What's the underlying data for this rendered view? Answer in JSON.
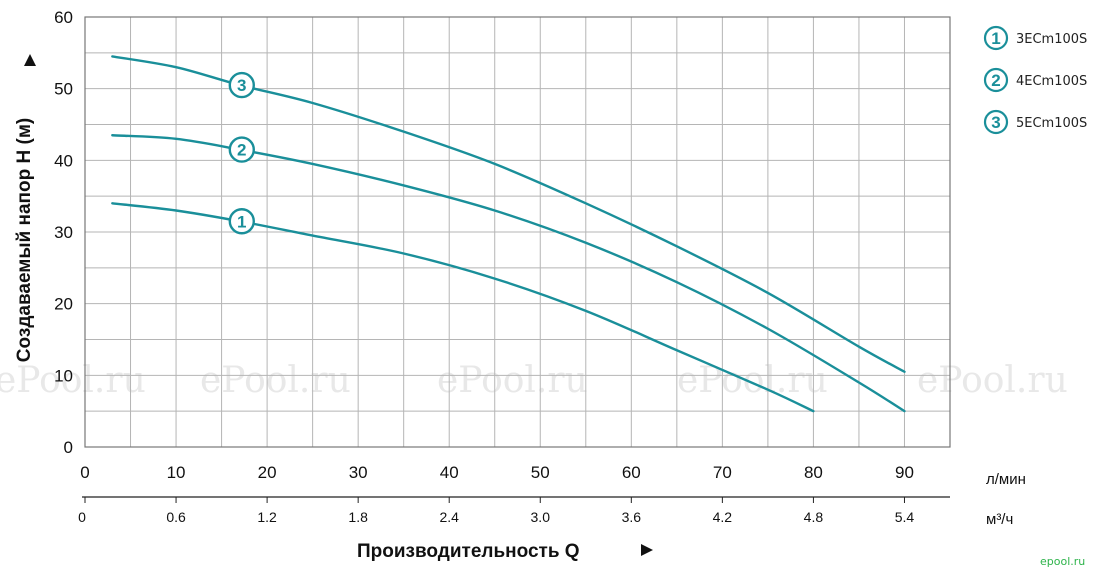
{
  "chart_data": {
    "type": "line",
    "xlabel": "Производительность Q",
    "ylabel": "Создаваемый напор H (м)",
    "xlim": [
      0,
      95
    ],
    "ylim": [
      0,
      60
    ],
    "x_ticks": [
      0,
      10,
      20,
      30,
      40,
      50,
      60,
      70,
      80,
      90
    ],
    "x_ticks_secondary": [
      "0",
      "0.6",
      "1.2",
      "1.8",
      "2.4",
      "3.0",
      "3.6",
      "4.2",
      "4.8",
      "5.4"
    ],
    "y_ticks": [
      0,
      10,
      20,
      30,
      40,
      50,
      60
    ],
    "x_unit": "л/мин",
    "x_unit_secondary": "м³/ч",
    "grid": true,
    "legend_position": "right",
    "series": [
      {
        "name": "3ECm100S",
        "marker": "1",
        "color": "#1a8f9a",
        "x": [
          3,
          10,
          17,
          25,
          35,
          45,
          55,
          65,
          75,
          80
        ],
        "y": [
          34,
          33,
          31.5,
          29.5,
          27,
          23.5,
          19,
          13.5,
          8,
          5
        ]
      },
      {
        "name": "4ECm100S",
        "marker": "2",
        "color": "#1a8f9a",
        "x": [
          3,
          10,
          17,
          25,
          35,
          45,
          55,
          65,
          75,
          85,
          90
        ],
        "y": [
          43.5,
          43,
          41.5,
          39.5,
          36.5,
          33,
          28.5,
          23,
          16.5,
          9,
          5
        ]
      },
      {
        "name": "5ECm100S",
        "marker": "3",
        "color": "#1a8f9a",
        "x": [
          3,
          10,
          17,
          25,
          35,
          45,
          55,
          65,
          75,
          85,
          90
        ],
        "y": [
          54.5,
          53,
          50.5,
          48,
          44,
          39.5,
          34,
          28,
          21.5,
          14,
          10.5
        ]
      }
    ]
  },
  "watermarks": [
    "ePool.ru",
    "ePool.ru",
    "ePool.ru",
    "ePool.ru",
    "ePool.ru"
  ],
  "corner_watermark": "epool.ru"
}
